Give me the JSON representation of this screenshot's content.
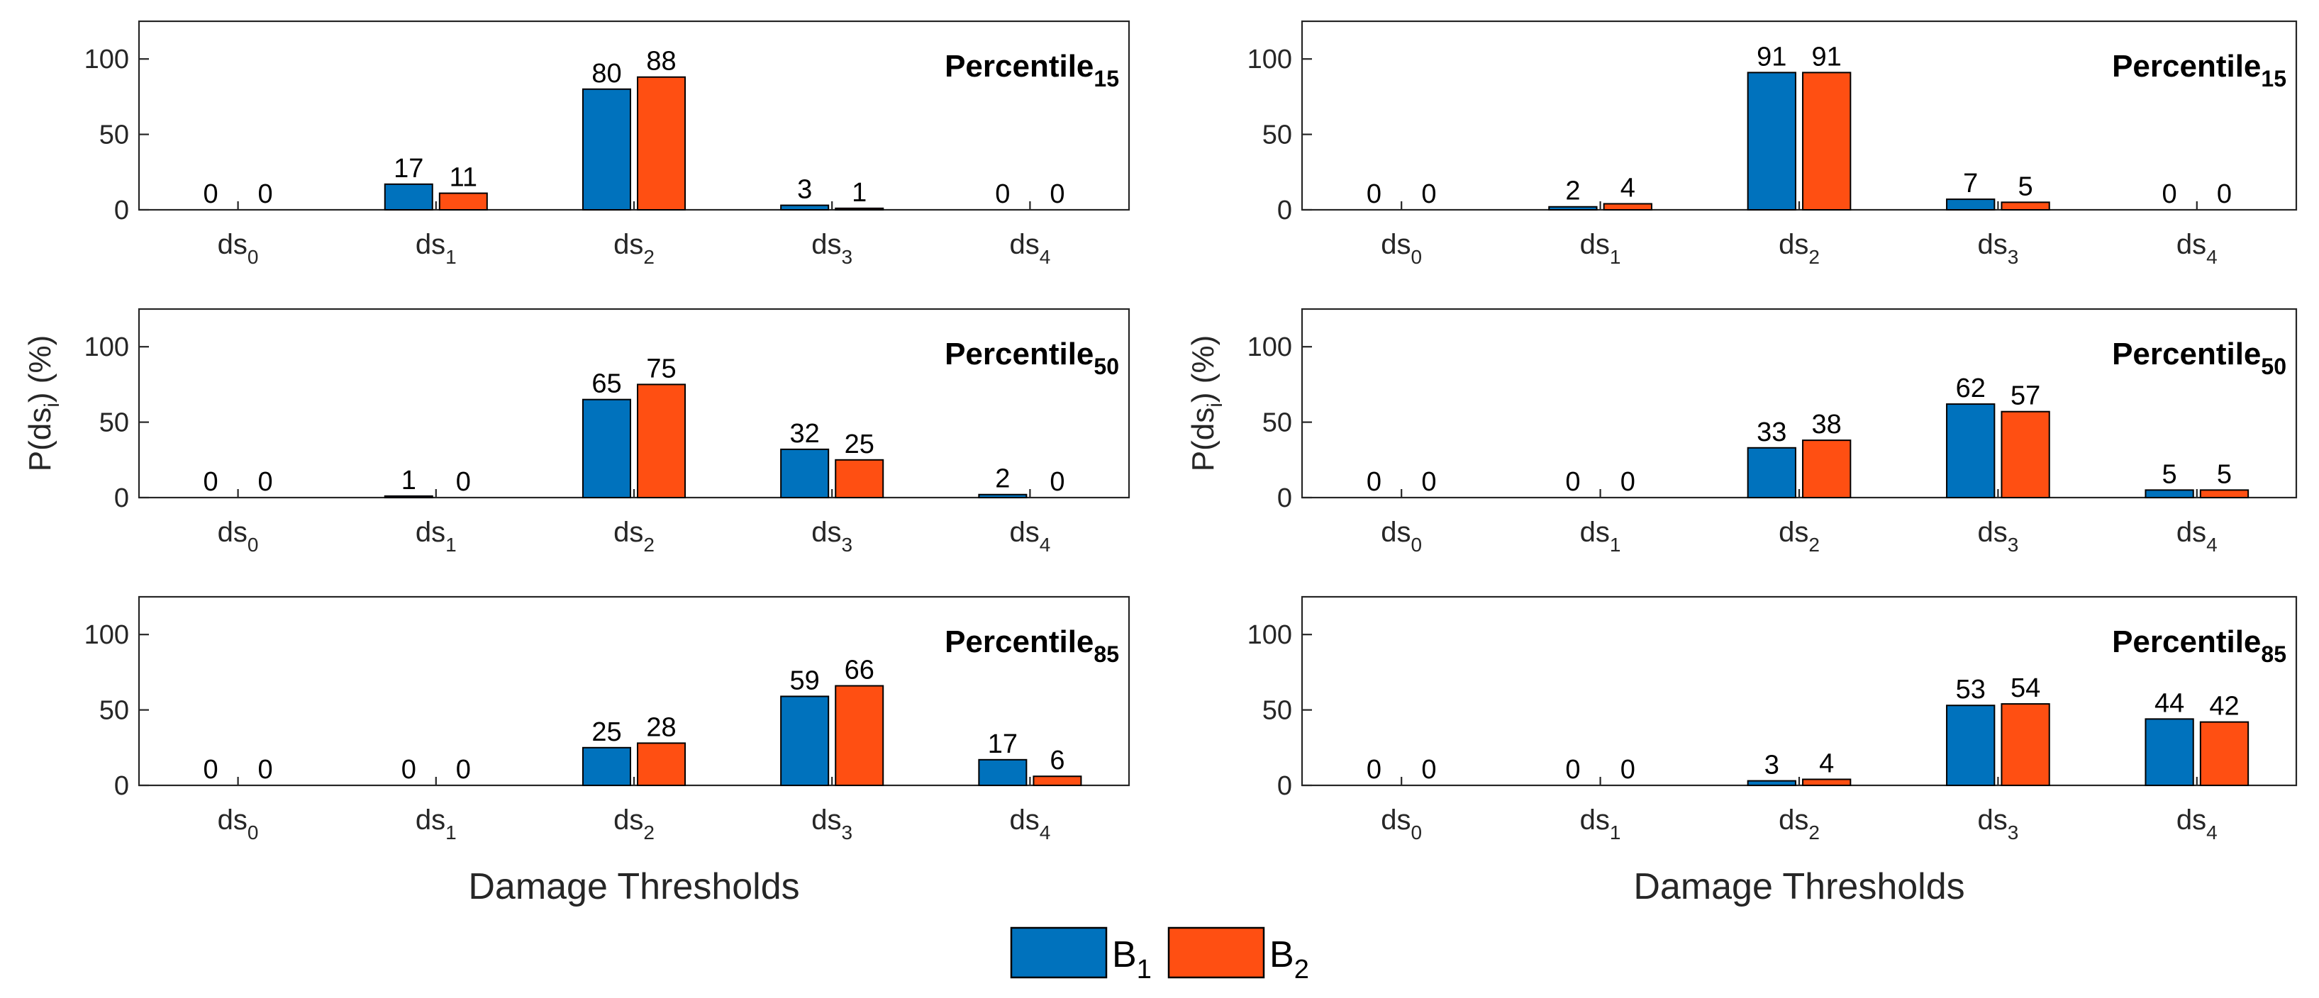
{
  "chart_data": [
    {
      "type": "bar",
      "title": "Percentile",
      "title_subscript": "15",
      "categories": [
        {
          "base": "ds",
          "sub": "0"
        },
        {
          "base": "ds",
          "sub": "1"
        },
        {
          "base": "ds",
          "sub": "2"
        },
        {
          "base": "ds",
          "sub": "3"
        },
        {
          "base": "ds",
          "sub": "4"
        }
      ],
      "series": [
        {
          "name": "B1",
          "values": [
            0,
            17,
            80,
            3,
            0
          ]
        },
        {
          "name": "B2",
          "values": [
            0,
            11,
            88,
            1,
            0
          ]
        }
      ],
      "ylim": [
        0,
        125
      ],
      "yticks": [
        0,
        50,
        100
      ],
      "xlabel": "",
      "ylabel": ""
    },
    {
      "type": "bar",
      "title": "Percentile",
      "title_subscript": "50",
      "categories": [
        {
          "base": "ds",
          "sub": "0"
        },
        {
          "base": "ds",
          "sub": "1"
        },
        {
          "base": "ds",
          "sub": "2"
        },
        {
          "base": "ds",
          "sub": "3"
        },
        {
          "base": "ds",
          "sub": "4"
        }
      ],
      "series": [
        {
          "name": "B1",
          "values": [
            0,
            1,
            65,
            32,
            2
          ]
        },
        {
          "name": "B2",
          "values": [
            0,
            0,
            75,
            25,
            0
          ]
        }
      ],
      "ylim": [
        0,
        125
      ],
      "yticks": [
        0,
        50,
        100
      ],
      "xlabel": "",
      "ylabel": "P(ds_i) (%)"
    },
    {
      "type": "bar",
      "title": "Percentile",
      "title_subscript": "85",
      "categories": [
        {
          "base": "ds",
          "sub": "0"
        },
        {
          "base": "ds",
          "sub": "1"
        },
        {
          "base": "ds",
          "sub": "2"
        },
        {
          "base": "ds",
          "sub": "3"
        },
        {
          "base": "ds",
          "sub": "4"
        }
      ],
      "series": [
        {
          "name": "B1",
          "values": [
            0,
            0,
            25,
            59,
            17
          ]
        },
        {
          "name": "B2",
          "values": [
            0,
            0,
            28,
            66,
            6
          ]
        }
      ],
      "ylim": [
        0,
        125
      ],
      "yticks": [
        0,
        50,
        100
      ],
      "xlabel": "Damage Thresholds",
      "ylabel": ""
    },
    {
      "type": "bar",
      "title": "Percentile",
      "title_subscript": "15",
      "categories": [
        {
          "base": "ds",
          "sub": "0"
        },
        {
          "base": "ds",
          "sub": "1"
        },
        {
          "base": "ds",
          "sub": "2"
        },
        {
          "base": "ds",
          "sub": "3"
        },
        {
          "base": "ds",
          "sub": "4"
        }
      ],
      "series": [
        {
          "name": "B1",
          "values": [
            0,
            2,
            91,
            7,
            0
          ]
        },
        {
          "name": "B2",
          "values": [
            0,
            4,
            91,
            5,
            0
          ]
        }
      ],
      "ylim": [
        0,
        125
      ],
      "yticks": [
        0,
        50,
        100
      ],
      "xlabel": "",
      "ylabel": ""
    },
    {
      "type": "bar",
      "title": "Percentile",
      "title_subscript": "50",
      "categories": [
        {
          "base": "ds",
          "sub": "0"
        },
        {
          "base": "ds",
          "sub": "1"
        },
        {
          "base": "ds",
          "sub": "2"
        },
        {
          "base": "ds",
          "sub": "3"
        },
        {
          "base": "ds",
          "sub": "4"
        }
      ],
      "series": [
        {
          "name": "B1",
          "values": [
            0,
            0,
            33,
            62,
            5
          ]
        },
        {
          "name": "B2",
          "values": [
            0,
            0,
            38,
            57,
            5
          ]
        }
      ],
      "ylim": [
        0,
        125
      ],
      "yticks": [
        0,
        50,
        100
      ],
      "xlabel": "",
      "ylabel": "P(ds_i) (%)"
    },
    {
      "type": "bar",
      "title": "Percentile",
      "title_subscript": "85",
      "categories": [
        {
          "base": "ds",
          "sub": "0"
        },
        {
          "base": "ds",
          "sub": "1"
        },
        {
          "base": "ds",
          "sub": "2"
        },
        {
          "base": "ds",
          "sub": "3"
        },
        {
          "base": "ds",
          "sub": "4"
        }
      ],
      "series": [
        {
          "name": "B1",
          "values": [
            0,
            0,
            3,
            53,
            44
          ]
        },
        {
          "name": "B2",
          "values": [
            0,
            0,
            4,
            54,
            42
          ]
        }
      ],
      "ylim": [
        0,
        125
      ],
      "yticks": [
        0,
        50,
        100
      ],
      "xlabel": "Damage Thresholds",
      "ylabel": ""
    }
  ],
  "legend": {
    "location": "bottom-center",
    "entries": [
      {
        "base": "B",
        "sub": "1",
        "color": "#0072BD"
      },
      {
        "base": "B",
        "sub": "2",
        "color": "#FF4F12"
      }
    ]
  },
  "colors": {
    "series_1": "#0072BD",
    "series_2": "#FF4F12",
    "axis": "#262626"
  }
}
